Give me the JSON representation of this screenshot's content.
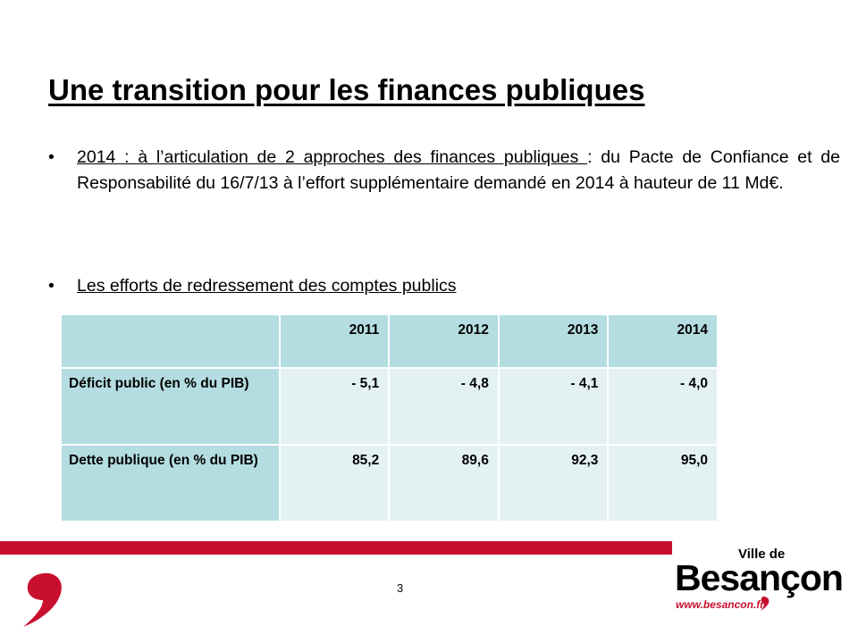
{
  "title": "Une transition pour les finances publiques",
  "bullets": [
    {
      "underlined": "2014 : à l’articulation de 2 approches des finances publiques ",
      "rest": ": du Pacte de Confiance et de Responsabilité du 16/7/13 à l’effort supplémentaire demandé en 2014 à hauteur de 11 Md€."
    },
    {
      "underlined": "Les efforts de redressement des comptes publics",
      "rest": ""
    }
  ],
  "table": {
    "columns": [
      "2011",
      "2012",
      "2013",
      "2014"
    ],
    "rows": [
      {
        "label": "Déficit public (en % du PIB)",
        "values": [
          "- 5,1",
          "- 4,8",
          "- 4,1",
          "- 4,0"
        ]
      },
      {
        "label": "Dette publique (en % du PIB)",
        "values": [
          "85,2",
          "89,6",
          "92,3",
          "95,0"
        ]
      }
    ]
  },
  "footer": {
    "page_number": "3",
    "logo_top": "Ville de",
    "logo_name": "Besançon",
    "logo_url": "www.besancon.fr"
  },
  "colors": {
    "accent_red": "#c8102e",
    "table_header": "#b4dde1",
    "table_cell": "#e3f1f3"
  }
}
